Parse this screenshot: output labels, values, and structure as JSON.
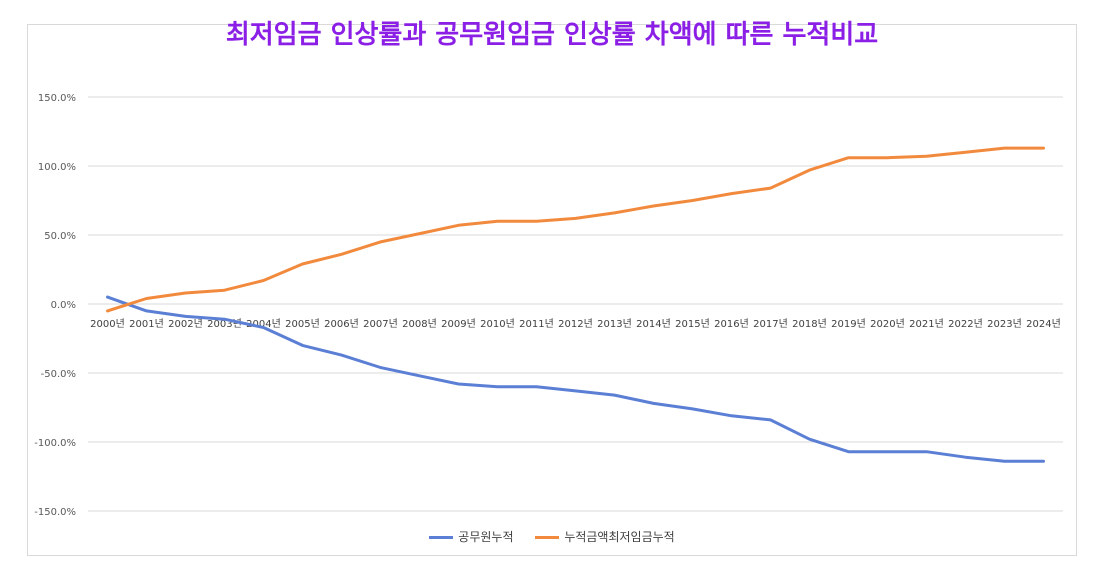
{
  "chart_data": {
    "type": "line",
    "title": "최저임금 인상률과 공무원임금 인상률 차액에 따른 누적비교",
    "x": [
      "2000년",
      "2001년",
      "2002년",
      "2003년",
      "2004년",
      "2005년",
      "2006년",
      "2007년",
      "2008년",
      "2009년",
      "2010년",
      "2011년",
      "2012년",
      "2013년",
      "2014년",
      "2015년",
      "2016년",
      "2017년",
      "2018년",
      "2019년",
      "2020년",
      "2021년",
      "2022년",
      "2023년",
      "2024년"
    ],
    "yticks": [
      "150.0%",
      "100.0%",
      "50.0%",
      "0.0%",
      "-50.0%",
      "-100.0%",
      "-150.0%"
    ],
    "ylim": [
      -150,
      150
    ],
    "grid": true,
    "legend_position": "bottom",
    "series": [
      {
        "name": "공무원누적",
        "color": "#5b7fd4",
        "values": [
          5,
          -5,
          -9,
          -11,
          -17,
          -30,
          -37,
          -46,
          -52,
          -58,
          -60,
          -60,
          -63,
          -66,
          -72,
          -76,
          -81,
          -84,
          -98,
          -107,
          -107,
          -107,
          -111,
          -114,
          -114
        ]
      },
      {
        "name": "누적금액최저임금누적",
        "color": "#f28a3e",
        "values": [
          -5,
          4,
          8,
          10,
          17,
          29,
          36,
          45,
          51,
          57,
          60,
          60,
          62,
          66,
          71,
          75,
          80,
          84,
          97,
          106,
          106,
          107,
          110,
          113,
          113
        ]
      }
    ]
  }
}
